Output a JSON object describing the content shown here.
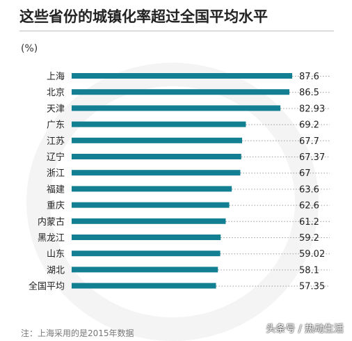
{
  "header": {
    "title": "这些省份的城镇化率超过全国平均水平",
    "unit": "(%)"
  },
  "footer": {
    "note": "注：上海采用的是2015年数据",
    "watermark": "头条号 / 热动生活"
  },
  "colors": {
    "bar": "#127f92",
    "leader": "#9a9a9a"
  },
  "chart_data": {
    "type": "bar",
    "orientation": "horizontal",
    "title": "这些省份的城镇化率超过全国平均水平",
    "ylabel": "(%)",
    "categories": [
      "上海",
      "北京",
      "天津",
      "广东",
      "江苏",
      "辽宁",
      "浙江",
      "福建",
      "重庆",
      "内蒙古",
      "黑龙江",
      "山东",
      "湖北",
      "全国平均"
    ],
    "values": [
      87.6,
      86.5,
      82.93,
      69.2,
      67.7,
      67.37,
      67,
      63.6,
      62.6,
      61.2,
      59.2,
      59.02,
      58.1,
      57.35
    ],
    "value_labels": [
      "87.6",
      "86.5",
      "82.93",
      "69.2",
      "67.7",
      "67.37",
      "67",
      "63.6",
      "62.6",
      "61.2",
      "59.2",
      "59.02",
      "58.1",
      "57.35"
    ],
    "xlim": [
      0,
      87.6
    ],
    "grid": false,
    "legend": "none"
  }
}
